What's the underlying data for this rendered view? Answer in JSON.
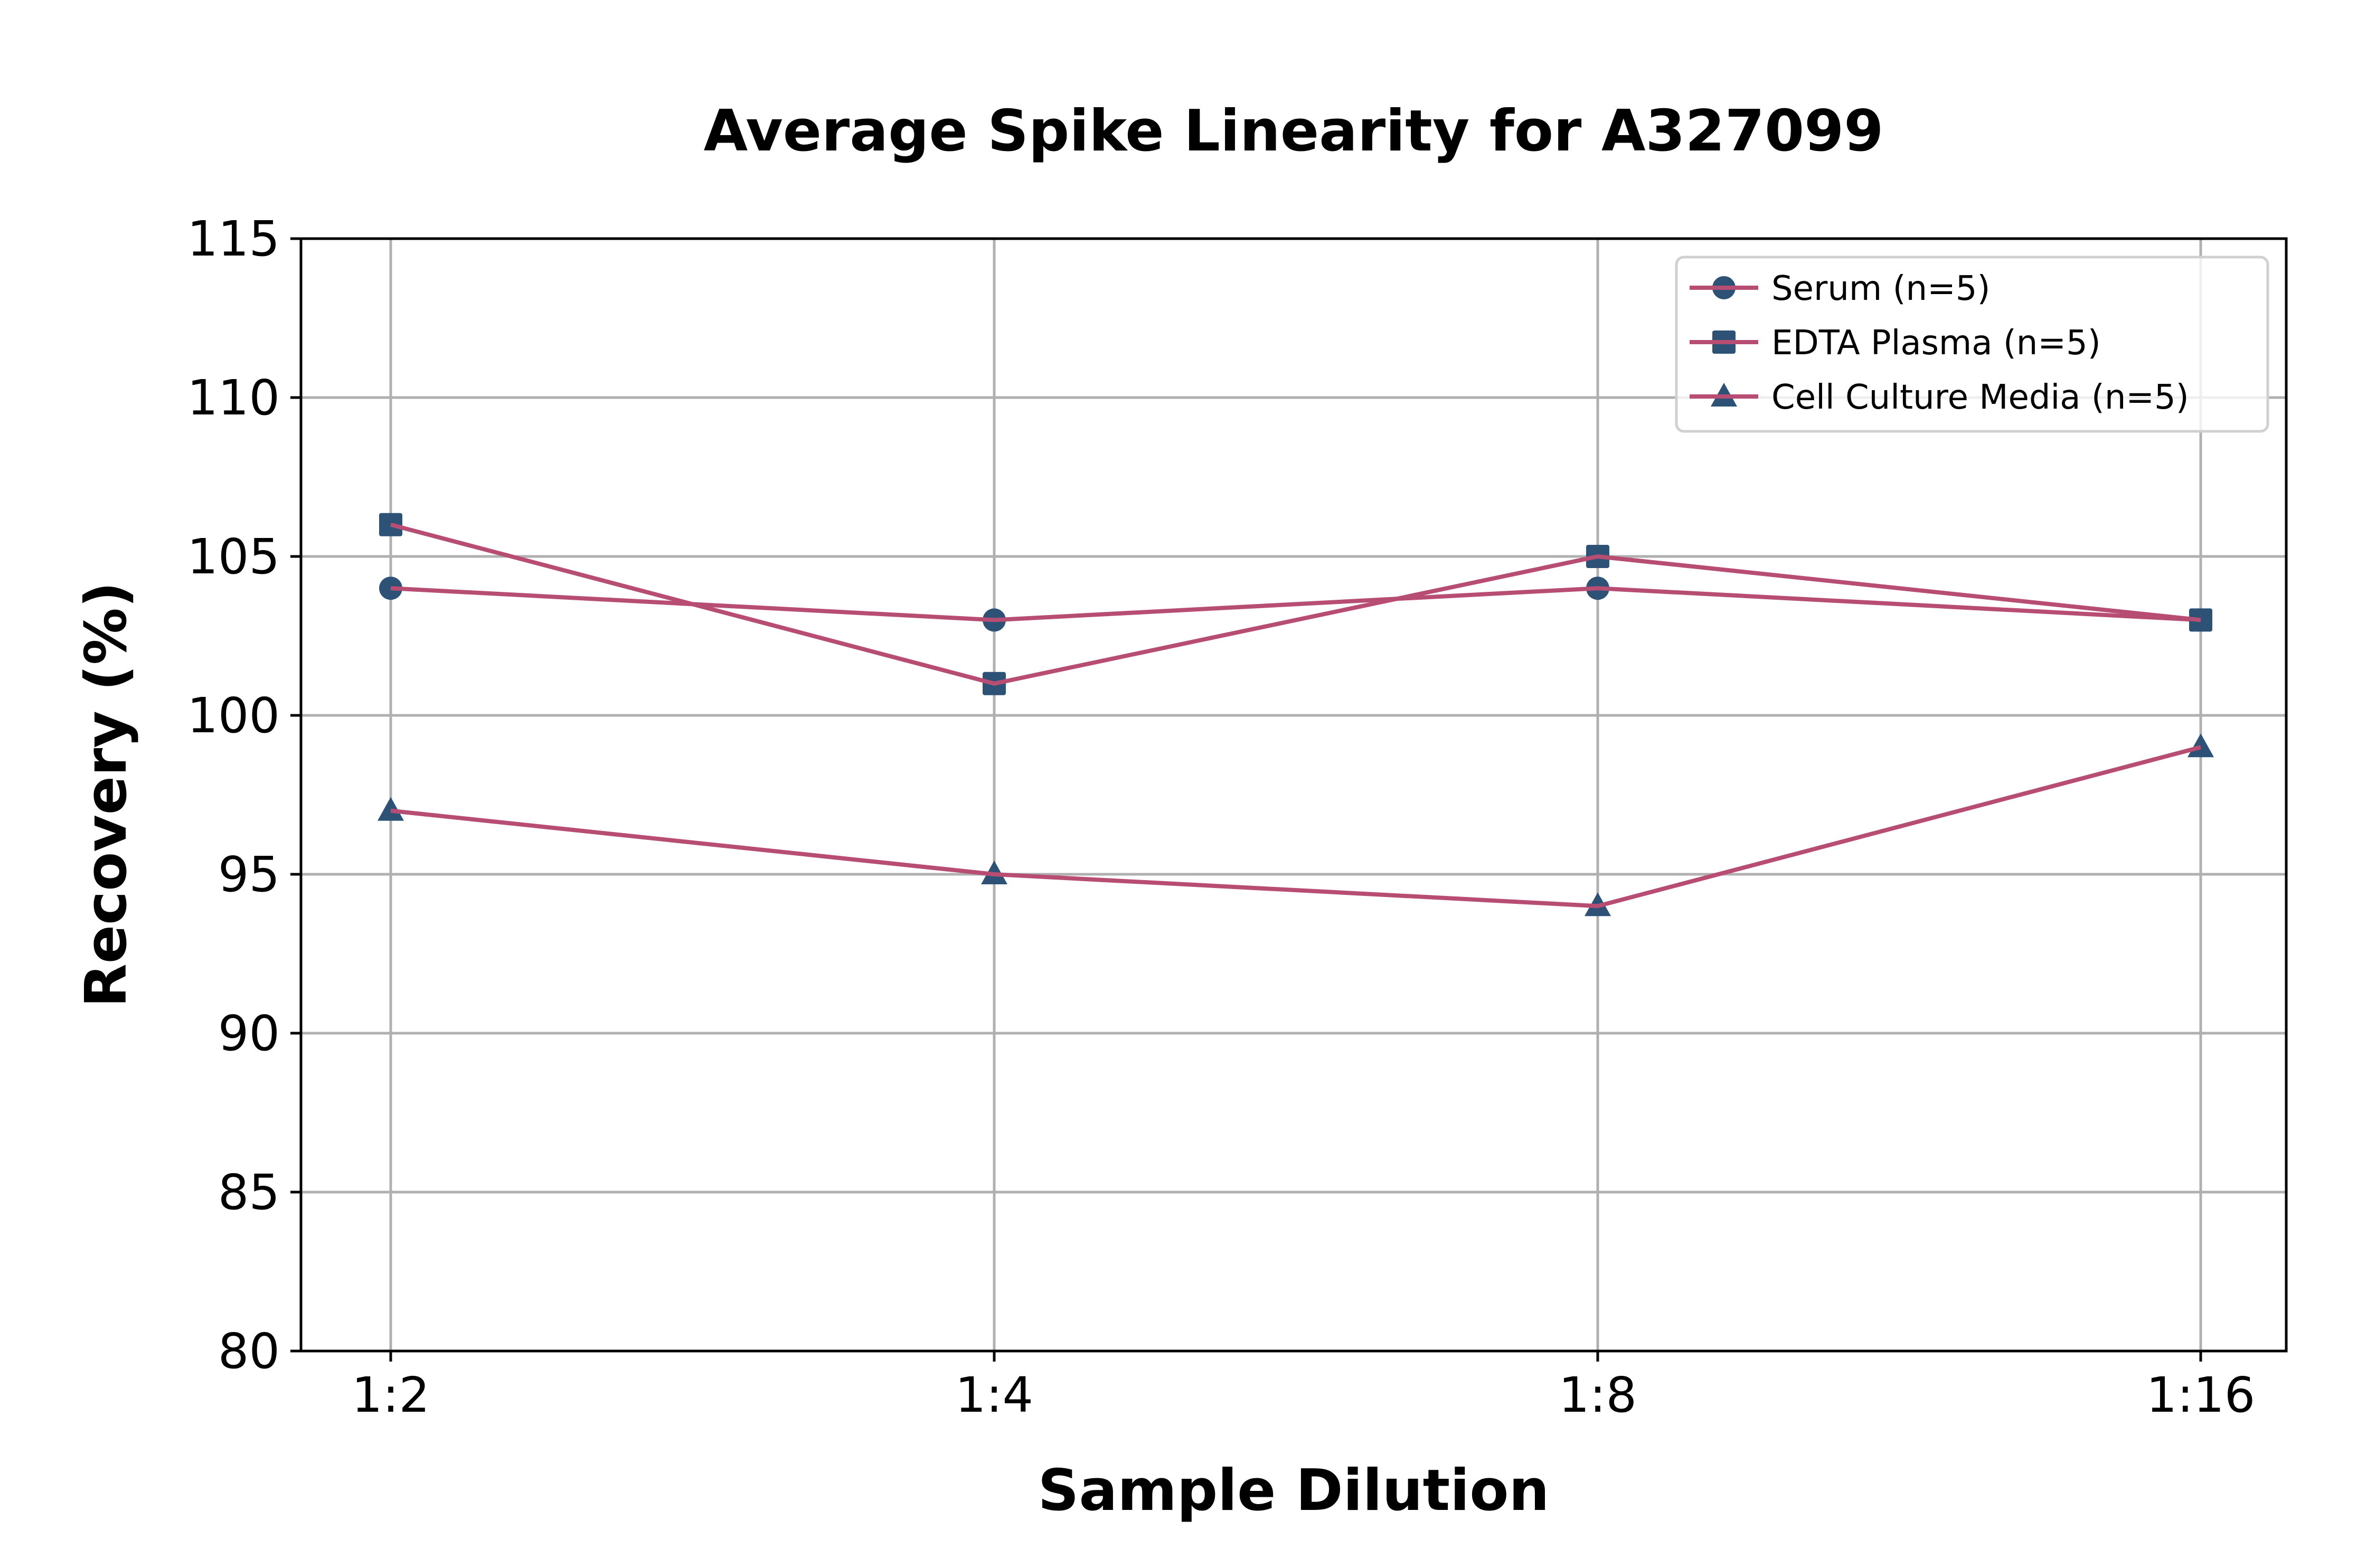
{
  "chart_data": {
    "type": "line",
    "title": "Average Spike Linearity for A327099",
    "xlabel": "Sample Dilution",
    "ylabel": "Recovery (%)",
    "categories": [
      "1:2",
      "1:4",
      "1:8",
      "1:16"
    ],
    "ylim": [
      80,
      115
    ],
    "yticks": [
      80,
      85,
      90,
      95,
      100,
      105,
      110,
      115
    ],
    "ytick_labels": [
      "80",
      "85",
      "90",
      "95",
      "100",
      "105",
      "110",
      "115"
    ],
    "grid": true,
    "legend_position": "top-right",
    "line_color": "#b84d74",
    "marker_color": "#2e5276",
    "series": [
      {
        "name": "Serum (n=5)",
        "marker": "circle",
        "values": [
          104,
          103,
          104,
          103
        ]
      },
      {
        "name": "EDTA Plasma (n=5)",
        "marker": "square",
        "values": [
          106,
          101,
          105,
          103
        ]
      },
      {
        "name": "Cell Culture Media (n=5)",
        "marker": "triangle",
        "values": [
          97,
          95,
          94,
          99
        ]
      }
    ]
  }
}
